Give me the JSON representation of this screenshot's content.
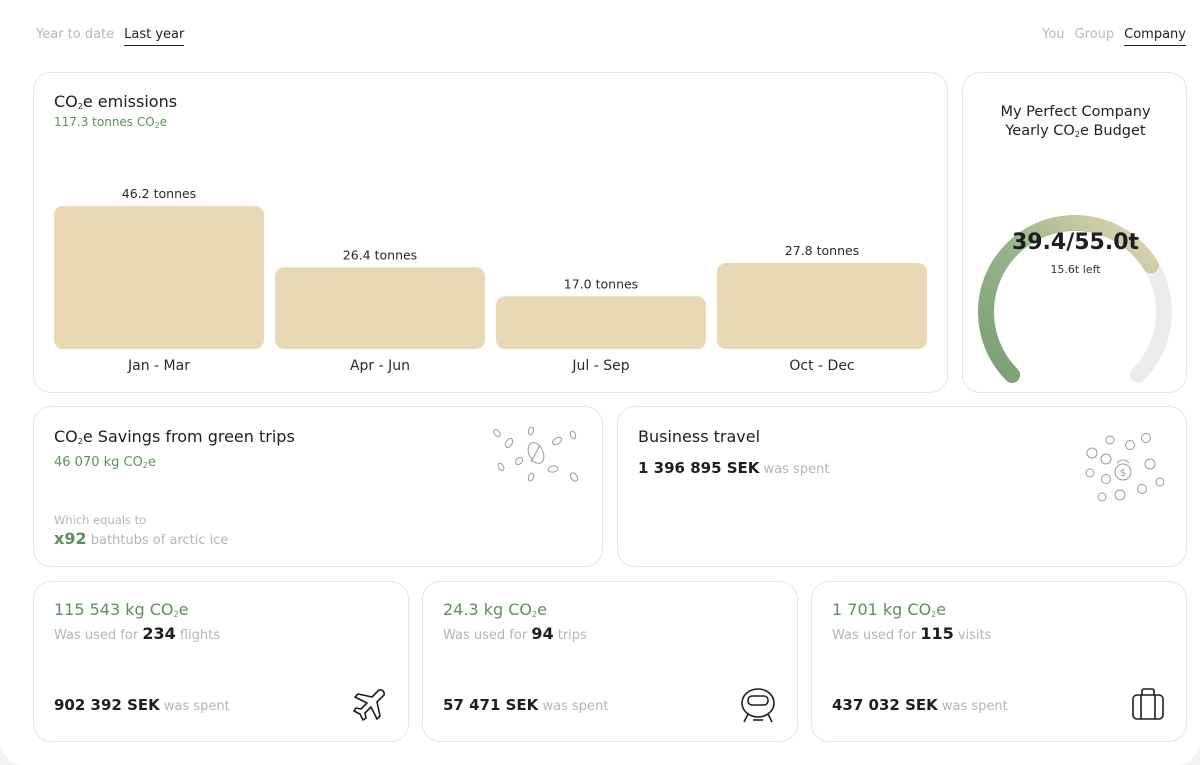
{
  "filters": {
    "period": [
      {
        "label": "Year to date",
        "active": false
      },
      {
        "label": "Last year",
        "active": true
      }
    ],
    "scope": [
      {
        "label": "You",
        "active": false
      },
      {
        "label": "Group",
        "active": false
      },
      {
        "label": "Company",
        "active": true
      }
    ]
  },
  "emissions": {
    "title_prefix": "CO",
    "title_sub": "2",
    "title_suffix": "e emissions",
    "total_prefix": "117.3 tonnes CO",
    "total_sub": "2",
    "total_suffix": "e"
  },
  "chart_data": {
    "type": "bar",
    "categories": [
      "Jan - Mar",
      "Apr - Jun",
      "Jul - Sep",
      "Oct - Dec"
    ],
    "values": [
      46.2,
      26.4,
      17.0,
      27.8
    ],
    "value_labels": [
      "46.2 tonnes",
      "26.4 tonnes",
      "17.0 tonnes",
      "27.8 tonnes"
    ],
    "unit": "tonnes",
    "bar_color": "#e8d8b3",
    "grid": false
  },
  "budget": {
    "title_line1": "My Perfect Company",
    "title_line2_prefix": "Yearly CO",
    "title_line2_sub": "2",
    "title_line2_suffix": "e Budget",
    "value_text": "39.4/55.0t",
    "left_text": "15.6t left",
    "used": 39.4,
    "total": 55.0,
    "colors": {
      "start": "#7a9e73",
      "end": "#e8d8b3",
      "track": "#ececea"
    }
  },
  "savings": {
    "title_prefix": "CO",
    "title_sub": "2",
    "title_suffix": "e Savings from green trips",
    "amount_prefix": "46 070 kg CO",
    "amount_sub": "2",
    "amount_suffix": "e",
    "equals_label": "Which equals to",
    "multiplier": "x92",
    "equals_text": "bathtubs of arctic ice"
  },
  "business": {
    "title": "Business travel",
    "amount": "1 396 895 SEK",
    "suffix": "was spent"
  },
  "stats": [
    {
      "value_prefix": "115 543 kg CO",
      "value_sub": "2",
      "value_suffix": "e",
      "used_prefix": "Was used for",
      "count": "234",
      "unit": "flights",
      "spent": "902 392 SEK",
      "spent_suffix": "was spent",
      "icon": "airplane-icon"
    },
    {
      "value_prefix": "24.3 kg CO",
      "value_sub": "2",
      "value_suffix": "e",
      "used_prefix": "Was used for",
      "count": "94",
      "unit": "trips",
      "spent": "57 471 SEK",
      "spent_suffix": "was spent",
      "icon": "train-icon"
    },
    {
      "value_prefix": "1 701 kg CO",
      "value_sub": "2",
      "value_suffix": "e",
      "used_prefix": "Was used for",
      "count": "115",
      "unit": "visits",
      "spent": "437 032 SEK",
      "spent_suffix": "was spent",
      "icon": "suitcase-icon"
    }
  ],
  "colors": {
    "accent_green": "#5f8f5b",
    "bar": "#e8d8b3",
    "muted": "#b5b5b5"
  }
}
